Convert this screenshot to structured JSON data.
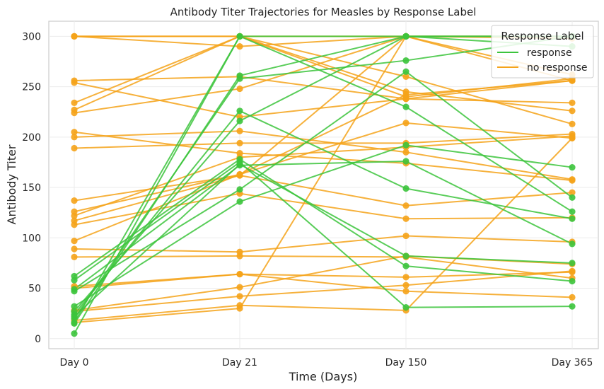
{
  "chart_data": {
    "type": "line",
    "title": "Antibody Titer Trajectories for Measles by Response Label",
    "xlabel": "Time (Days)",
    "ylabel": "Antibody Titer",
    "x_categories": [
      "Day 0",
      "Day 21",
      "Day 150",
      "Day 365"
    ],
    "ylim": [
      -10,
      315
    ],
    "yticks": [
      0,
      50,
      100,
      150,
      200,
      250,
      300
    ],
    "grid": true,
    "legend": {
      "title": "Response Label",
      "placement": "top-right",
      "entries": [
        {
          "label": "response",
          "color": "#3cc43c"
        },
        {
          "label": "no response",
          "color": "#f5a31a"
        }
      ]
    },
    "series": [
      {
        "group": "no response",
        "values": [
          300,
          300,
          300,
          300
        ]
      },
      {
        "group": "no response",
        "values": [
          300,
          290,
          300,
          298
        ]
      },
      {
        "group": "no response",
        "values": [
          300,
          300,
          260,
          213
        ]
      },
      {
        "group": "no response",
        "values": [
          256,
          260,
          238,
          234
        ]
      },
      {
        "group": "no response",
        "values": [
          254,
          220,
          238,
          256
        ]
      },
      {
        "group": "no response",
        "values": [
          234,
          300,
          240,
          258
        ]
      },
      {
        "group": "no response",
        "values": [
          227,
          300,
          245,
          226
        ]
      },
      {
        "group": "no response",
        "values": [
          224,
          248,
          300,
          262
        ]
      },
      {
        "group": "no response",
        "values": [
          205,
          184,
          174,
          157
        ]
      },
      {
        "group": "no response",
        "values": [
          200,
          206,
          185,
          158
        ]
      },
      {
        "group": "no response",
        "values": [
          189,
          194,
          194,
          203
        ]
      },
      {
        "group": "no response",
        "values": [
          137,
          162,
          300,
          300
        ]
      },
      {
        "group": "no response",
        "values": [
          126,
          163,
          214,
          199
        ]
      },
      {
        "group": "no response",
        "values": [
          122,
          180,
          190,
          201
        ]
      },
      {
        "group": "no response",
        "values": [
          117,
          162,
          132,
          145
        ]
      },
      {
        "group": "no response",
        "values": [
          113,
          144,
          119,
          120
        ]
      },
      {
        "group": "no response",
        "values": [
          97,
          163,
          242,
          256
        ]
      },
      {
        "group": "no response",
        "values": [
          89,
          86,
          102,
          96
        ]
      },
      {
        "group": "no response",
        "values": [
          81,
          82,
          81,
          60
        ]
      },
      {
        "group": "no response",
        "values": [
          52,
          64,
          61,
          66
        ]
      },
      {
        "group": "no response",
        "values": [
          50,
          64,
          47,
          41
        ]
      },
      {
        "group": "no response",
        "values": [
          28,
          51,
          82,
          74
        ]
      },
      {
        "group": "no response",
        "values": [
          27,
          42,
          53,
          67
        ]
      },
      {
        "group": "no response",
        "values": [
          18,
          33,
          28,
          199
        ]
      },
      {
        "group": "no response",
        "values": [
          16,
          30,
          300,
          256
        ]
      },
      {
        "group": "response",
        "values": [
          5,
          300,
          300,
          300
        ]
      },
      {
        "group": "response",
        "values": [
          15,
          261,
          300,
          290
        ]
      },
      {
        "group": "response",
        "values": [
          20,
          258,
          276,
          300
        ]
      },
      {
        "group": "response",
        "values": [
          24,
          226,
          149,
          119
        ]
      },
      {
        "group": "response",
        "values": [
          27,
          216,
          300,
          300
        ]
      },
      {
        "group": "response",
        "values": [
          32,
          136,
          192,
          170
        ]
      },
      {
        "group": "response",
        "values": [
          47,
          148,
          265,
          140
        ]
      },
      {
        "group": "response",
        "values": [
          49,
          172,
          176,
          94
        ]
      },
      {
        "group": "response",
        "values": [
          58,
          175,
          31,
          32
        ]
      },
      {
        "group": "response",
        "values": [
          62,
          178,
          72,
          57
        ]
      },
      {
        "group": "response",
        "values": [
          16,
          300,
          230,
          126
        ]
      },
      {
        "group": "response",
        "values": [
          22,
          173,
          82,
          75
        ]
      }
    ]
  }
}
